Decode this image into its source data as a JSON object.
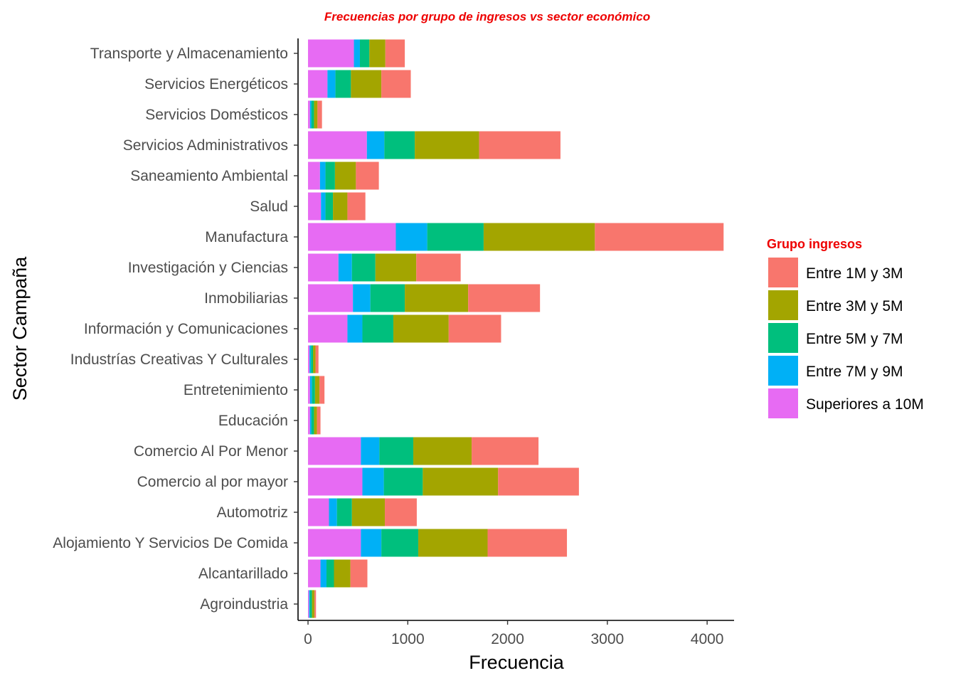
{
  "chart_data": {
    "type": "bar",
    "orientation": "horizontal",
    "stacked": true,
    "title": "Frecuencias por grupo de ingresos vs sector económico",
    "title_color": "#ee0000",
    "xlabel": "Frecuencia",
    "ylabel": "Sector Campaña",
    "xlim": [
      -100,
      4270
    ],
    "xticks": [
      0,
      1000,
      2000,
      3000,
      4000
    ],
    "xtick_labels": [
      "0",
      "1000",
      "2000",
      "3000",
      "4000"
    ],
    "grid": false,
    "legend": {
      "title": "Grupo ingresos",
      "title_color": "#ee0000",
      "placement": "right",
      "entries": [
        "Entre 1M y 3M",
        "Entre 3M y  5M",
        "Entre 5M y 7M",
        "Entre 7M y 9M",
        "Superiores a 10M"
      ]
    },
    "categories": [
      "Transporte y Almacenamiento",
      "Servicios Energéticos",
      "Servicios Domésticos",
      "Servicios Administrativos",
      "Saneamiento Ambiental",
      "Salud",
      "Manufactura",
      "Investigación y Ciencias",
      "Inmobiliarias",
      "Información y Comunicaciones",
      "Industrías Creativas Y Culturales",
      "Entretenimiento",
      "Educación",
      "Comercio Al Por Menor",
      "Comercio al por mayor",
      "Automotriz",
      "Alojamiento Y Servicios De Comida",
      "Alcantarillado",
      "Agroindustria"
    ],
    "series": [
      {
        "name": "Superiores a 10M",
        "color": "#e76bf3",
        "values": [
          460,
          195,
          20,
          590,
          120,
          130,
          880,
          305,
          450,
          395,
          15,
          20,
          20,
          530,
          545,
          210,
          530,
          125,
          10
        ]
      },
      {
        "name": "Entre 7M y 9M",
        "color": "#00b0f6",
        "values": [
          60,
          80,
          15,
          175,
          55,
          45,
          315,
          135,
          175,
          150,
          15,
          20,
          15,
          185,
          215,
          80,
          205,
          60,
          10
        ]
      },
      {
        "name": "Entre 5M y 7M",
        "color": "#00bf7d",
        "values": [
          95,
          155,
          25,
          305,
          95,
          75,
          565,
          235,
          345,
          310,
          20,
          30,
          25,
          340,
          390,
          150,
          370,
          75,
          20
        ]
      },
      {
        "name": "Entre 3M y  5M",
        "color": "#a3a500",
        "values": [
          160,
          305,
          35,
          645,
          210,
          145,
          1115,
          410,
          635,
          555,
          25,
          45,
          30,
          585,
          755,
          330,
          695,
          165,
          25
        ]
      },
      {
        "name": "Entre 1M y 3M",
        "color": "#f8766d",
        "values": [
          195,
          295,
          45,
          815,
          230,
          180,
          1290,
          445,
          720,
          525,
          30,
          50,
          35,
          670,
          810,
          320,
          795,
          170,
          15
        ]
      }
    ]
  }
}
